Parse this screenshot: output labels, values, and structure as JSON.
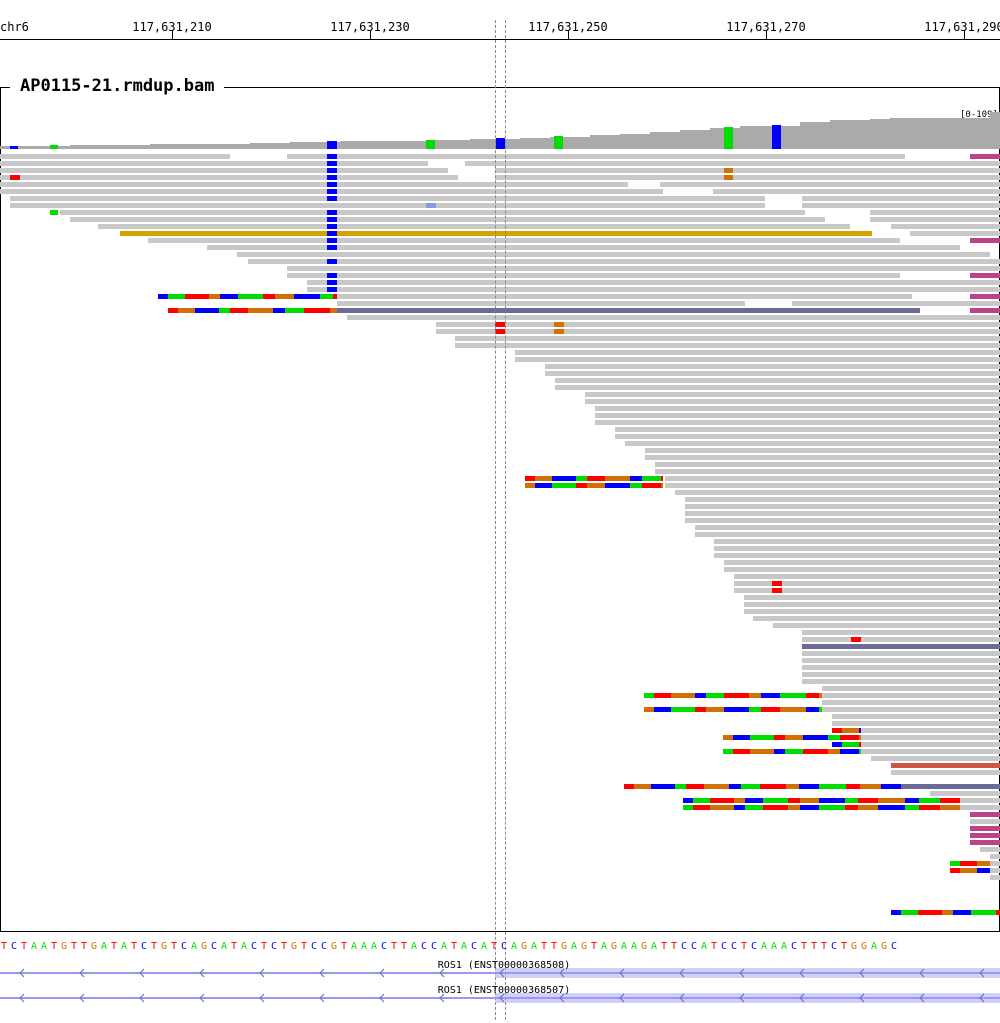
{
  "ruler": {
    "chrom": "chr6",
    "ticks": [
      "117,631,210",
      "117,631,230",
      "117,631,250",
      "117,631,270",
      "117,631,290"
    ]
  },
  "track": {
    "title": "AP0115-21.rmdup.bam",
    "range": "[0-109]"
  },
  "colors": {
    "read": "#c8c8c8",
    "coverage": "#aaaaaa",
    "A": "#00dd00",
    "C": "#0000ff",
    "G": "#d17105",
    "T": "#ff0000",
    "insert": "#bb4488",
    "gene": "#9999ee"
  },
  "sequence": "TCTAATGTTGATATCTGTCAGCATACTCTGTCCGTAAACTTACCATACATCAGATTGAGTAGAAGATTCCATCCTCAAACTTTCTGGAGC",
  "genes": [
    {
      "name": "ROS1 (ENST00000368508)"
    },
    {
      "name": "ROS1 (ENST00000368507)"
    }
  ]
}
